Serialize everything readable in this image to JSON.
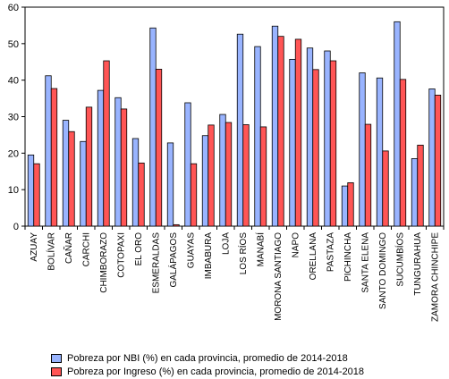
{
  "chart_data": {
    "type": "bar",
    "categories": [
      "AZUAY",
      "BOLÍVAR",
      "CAÑAR",
      "CARCHI",
      "CHIMBORAZO",
      "COTOPAXI",
      "EL ORO",
      "ESMERALDAS",
      "GALÁPAGOS",
      "GUAYAS",
      "IMBABURA",
      "LOJA",
      "LOS RÍOS",
      "MANABÍ",
      "MORONA SANTIAGO",
      "NAPO",
      "ORELLANA",
      "PASTAZA",
      "PICHINCHA",
      "SANTA ELENA",
      "SANTO DOMINGO",
      "SUCUMBÍOS",
      "TUNGURAHUA",
      "ZAMORA CHINCHIPE"
    ],
    "series": [
      {
        "name": "Pobreza por NBI (%) en cada provincia, promedio de 2014-2018",
        "color": "#99b4ff",
        "values": [
          19.5,
          41.2,
          29.0,
          23.2,
          37.2,
          35.2,
          24.0,
          54.3,
          22.8,
          33.8,
          24.8,
          30.6,
          52.6,
          49.2,
          54.8,
          45.7,
          48.8,
          48.0,
          11.0,
          42.0,
          40.6,
          56.0,
          18.5,
          37.6
        ]
      },
      {
        "name": "Pobreza por Ingreso (%) en cada provincia, promedio de 2014-2018",
        "color": "#ff5555",
        "values": [
          17.1,
          37.7,
          25.9,
          32.6,
          45.3,
          32.1,
          17.3,
          43.0,
          0.4,
          17.1,
          27.7,
          28.4,
          27.8,
          27.2,
          52.0,
          51.2,
          42.9,
          45.3,
          11.9,
          27.9,
          20.6,
          40.2,
          22.2,
          35.9
        ]
      }
    ],
    "ylim": [
      0,
      60
    ],
    "yticks": [
      0,
      10,
      20,
      30,
      40,
      50,
      60
    ],
    "grid": false,
    "legend_position": "bottom"
  }
}
